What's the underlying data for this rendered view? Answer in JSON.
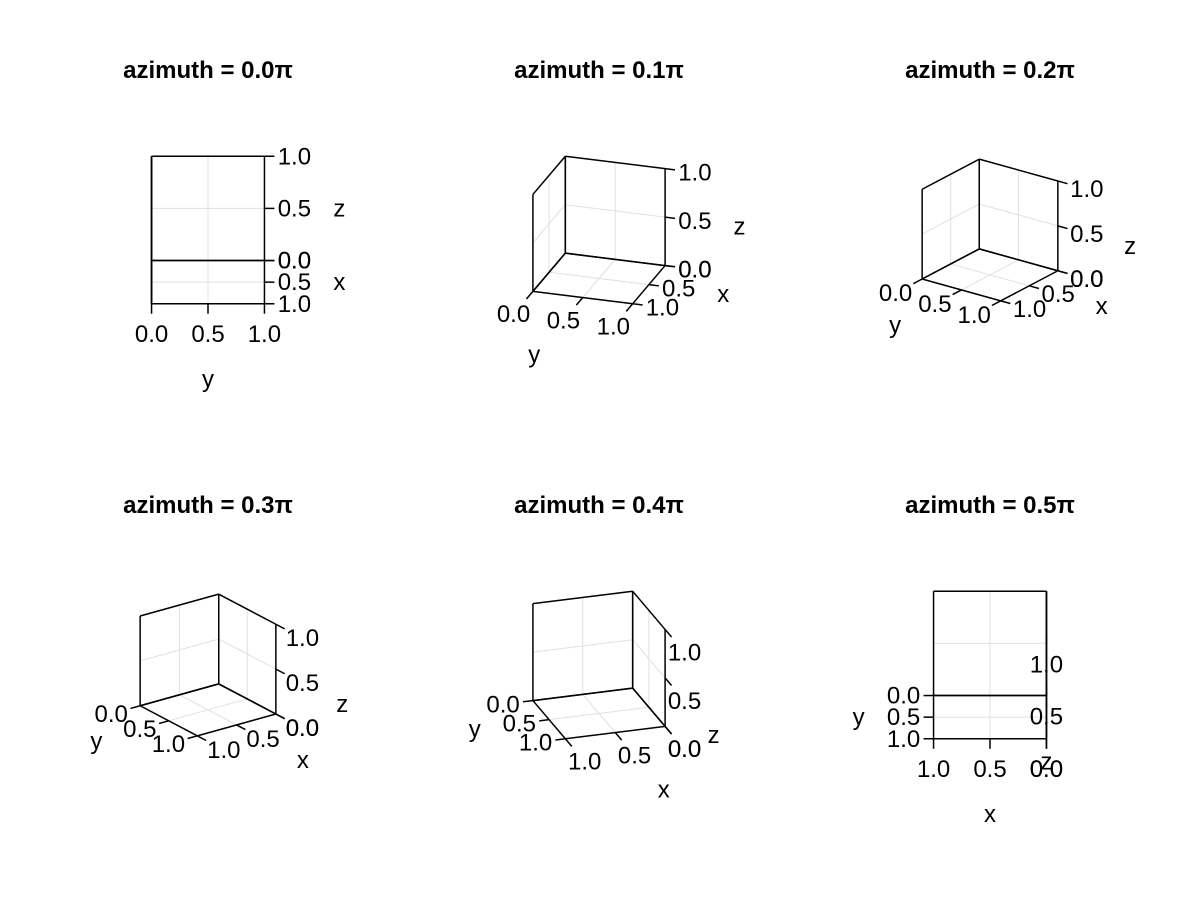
{
  "chart_data": [
    {
      "type": "3d-axis",
      "title": "azimuth = 0.0π",
      "azimuth_pi": 0.0,
      "elevation_pi": 0.125,
      "xlabel": "x",
      "ylabel": "y",
      "zlabel": "z",
      "xlim": [
        0,
        1
      ],
      "ylim": [
        0,
        1
      ],
      "zlim": [
        0,
        1
      ],
      "ticks": [
        0.0,
        0.5,
        1.0
      ],
      "tick_labels": [
        "0.0",
        "0.5",
        "1.0"
      ],
      "grid": true,
      "series": []
    },
    {
      "type": "3d-axis",
      "title": "azimuth = 0.1π",
      "azimuth_pi": 0.1,
      "elevation_pi": 0.125,
      "xlabel": "x",
      "ylabel": "y",
      "zlabel": "z",
      "xlim": [
        0,
        1
      ],
      "ylim": [
        0,
        1
      ],
      "zlim": [
        0,
        1
      ],
      "ticks": [
        0.0,
        0.5,
        1.0
      ],
      "tick_labels": [
        "0.0",
        "0.5",
        "1.0"
      ],
      "grid": true,
      "series": []
    },
    {
      "type": "3d-axis",
      "title": "azimuth = 0.2π",
      "azimuth_pi": 0.2,
      "elevation_pi": 0.125,
      "xlabel": "x",
      "ylabel": "y",
      "zlabel": "z",
      "xlim": [
        0,
        1
      ],
      "ylim": [
        0,
        1
      ],
      "zlim": [
        0,
        1
      ],
      "ticks": [
        0.0,
        0.5,
        1.0
      ],
      "tick_labels": [
        "0.0",
        "0.5",
        "1.0"
      ],
      "grid": true,
      "series": []
    },
    {
      "type": "3d-axis",
      "title": "azimuth = 0.3π",
      "azimuth_pi": 0.3,
      "elevation_pi": 0.125,
      "xlabel": "x",
      "ylabel": "y",
      "zlabel": "z",
      "xlim": [
        0,
        1
      ],
      "ylim": [
        0,
        1
      ],
      "zlim": [
        0,
        1
      ],
      "ticks": [
        0.0,
        0.5,
        1.0
      ],
      "tick_labels": [
        "0.0",
        "0.5",
        "1.0"
      ],
      "grid": true,
      "series": []
    },
    {
      "type": "3d-axis",
      "title": "azimuth = 0.4π",
      "azimuth_pi": 0.4,
      "elevation_pi": 0.125,
      "xlabel": "x",
      "ylabel": "y",
      "zlabel": "z",
      "xlim": [
        0,
        1
      ],
      "ylim": [
        0,
        1
      ],
      "zlim": [
        0,
        1
      ],
      "ticks": [
        0.0,
        0.5,
        1.0
      ],
      "tick_labels": [
        "0.0",
        "0.5",
        "1.0"
      ],
      "grid": true,
      "series": []
    },
    {
      "type": "3d-axis",
      "title": "azimuth = 0.5π",
      "azimuth_pi": 0.5,
      "elevation_pi": 0.125,
      "xlabel": "x",
      "ylabel": "y",
      "zlabel": "z",
      "xlim": [
        0,
        1
      ],
      "ylim": [
        0,
        1
      ],
      "zlim": [
        0,
        1
      ],
      "ticks": [
        0.0,
        0.5,
        1.0
      ],
      "tick_labels": [
        "0.0",
        "0.5",
        "1.0"
      ],
      "grid": true,
      "series": []
    }
  ],
  "colors": {
    "axis": "#000000",
    "grid": "#e0e0e0",
    "background": "#ffffff"
  }
}
